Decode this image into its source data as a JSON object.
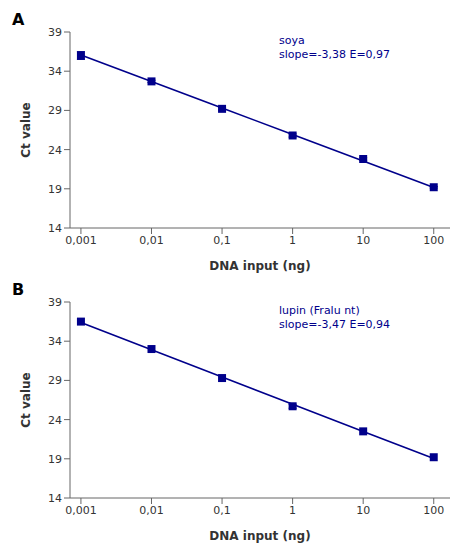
{
  "chart_data": [
    {
      "type": "scatter",
      "title": "A",
      "annotations": [
        "soya",
        "slope=-3,38 E=0,97"
      ],
      "x": [
        0.001,
        0.01,
        0.1,
        1,
        10,
        100
      ],
      "series": [
        {
          "type": "scatter",
          "marker": "square",
          "color": "#00008B",
          "values": [
            36.0,
            32.7,
            29.2,
            25.8,
            22.8,
            19.2
          ],
          "errors": [
            0.5,
            0.15,
            0.15,
            0.2,
            0.15,
            0.1
          ]
        },
        {
          "type": "line",
          "line_style": "solid",
          "color": "#00008B",
          "values": [
            36.0667,
            32.6867,
            29.3067,
            25.9267,
            22.5467,
            19.1667
          ]
        }
      ],
      "xlabel": "DNA input (ng)",
      "ylabel": "Ct value",
      "log": "x",
      "grid": false,
      "xlim": [
        0.0007,
        170
      ],
      "xticks": [
        {
          "value": 0.001,
          "label": "0,001"
        },
        {
          "value": 0.01,
          "label": "0,01"
        },
        {
          "value": 0.1,
          "label": "0,1"
        },
        1,
        10,
        100
      ],
      "ylim": [
        14,
        39
      ],
      "yticks": [
        14,
        19,
        24,
        29,
        34,
        39
      ]
    },
    {
      "type": "scatter",
      "title": "B",
      "annotations": [
        "lupin (Fralu nt)",
        "slope=-3,47 E=0,94"
      ],
      "x": [
        0.001,
        0.01,
        0.1,
        1,
        10,
        100
      ],
      "series": [
        {
          "type": "scatter",
          "marker": "square",
          "color": "#00008B",
          "values": [
            36.5,
            33.0,
            29.3,
            25.7,
            22.5,
            19.2
          ],
          "errors": [
            0.0,
            0.0,
            0.0,
            0.25,
            0.0,
            0.0
          ]
        },
        {
          "type": "line",
          "line_style": "solid",
          "color": "#00008B",
          "values": [
            36.375,
            32.905,
            29.435,
            25.965,
            22.495,
            19.025
          ]
        }
      ],
      "xlabel": "DNA input (ng)",
      "ylabel": "Ct value",
      "log": "x",
      "grid": false,
      "xlim": [
        0.0007,
        170
      ],
      "xticks": [
        {
          "value": 0.001,
          "label": "0,001"
        },
        {
          "value": 0.01,
          "label": "0,01"
        },
        {
          "value": 0.1,
          "label": "0,1"
        },
        1,
        10,
        100
      ],
      "ylim": [
        14,
        39
      ],
      "yticks": [
        14,
        19,
        24,
        29,
        34,
        39
      ]
    }
  ]
}
